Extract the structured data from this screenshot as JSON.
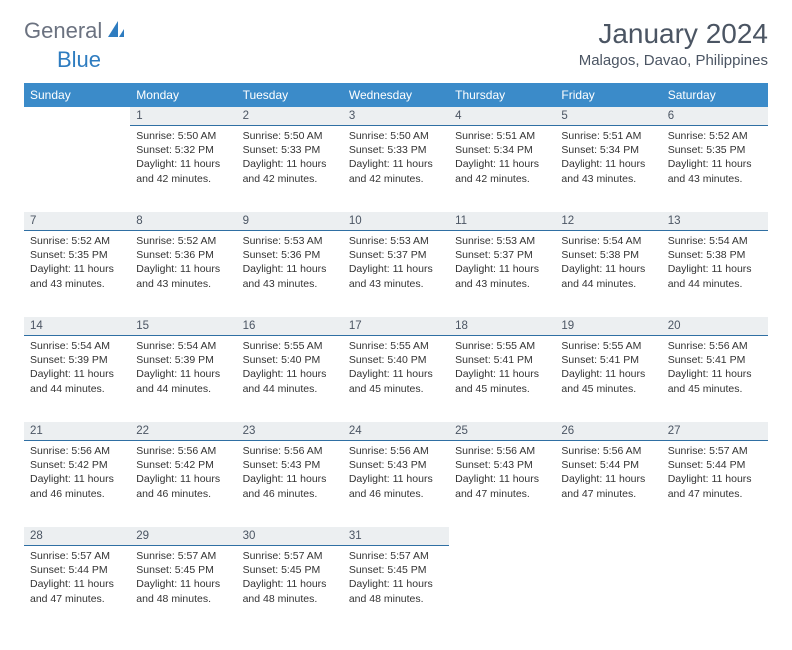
{
  "brand": {
    "part1": "General",
    "part2": "Blue"
  },
  "title": "January 2024",
  "location": "Malagos, Davao, Philippines",
  "header_bg": "#3b8bc9",
  "daynum_bg": "#eceff1",
  "border_color": "#2f6fa3",
  "weekdays": [
    "Sunday",
    "Monday",
    "Tuesday",
    "Wednesday",
    "Thursday",
    "Friday",
    "Saturday"
  ],
  "weeks": [
    [
      null,
      {
        "n": "1",
        "sr": "5:50 AM",
        "ss": "5:32 PM",
        "dl": "11 hours and 42 minutes."
      },
      {
        "n": "2",
        "sr": "5:50 AM",
        "ss": "5:33 PM",
        "dl": "11 hours and 42 minutes."
      },
      {
        "n": "3",
        "sr": "5:50 AM",
        "ss": "5:33 PM",
        "dl": "11 hours and 42 minutes."
      },
      {
        "n": "4",
        "sr": "5:51 AM",
        "ss": "5:34 PM",
        "dl": "11 hours and 42 minutes."
      },
      {
        "n": "5",
        "sr": "5:51 AM",
        "ss": "5:34 PM",
        "dl": "11 hours and 43 minutes."
      },
      {
        "n": "6",
        "sr": "5:52 AM",
        "ss": "5:35 PM",
        "dl": "11 hours and 43 minutes."
      }
    ],
    [
      {
        "n": "7",
        "sr": "5:52 AM",
        "ss": "5:35 PM",
        "dl": "11 hours and 43 minutes."
      },
      {
        "n": "8",
        "sr": "5:52 AM",
        "ss": "5:36 PM",
        "dl": "11 hours and 43 minutes."
      },
      {
        "n": "9",
        "sr": "5:53 AM",
        "ss": "5:36 PM",
        "dl": "11 hours and 43 minutes."
      },
      {
        "n": "10",
        "sr": "5:53 AM",
        "ss": "5:37 PM",
        "dl": "11 hours and 43 minutes."
      },
      {
        "n": "11",
        "sr": "5:53 AM",
        "ss": "5:37 PM",
        "dl": "11 hours and 43 minutes."
      },
      {
        "n": "12",
        "sr": "5:54 AM",
        "ss": "5:38 PM",
        "dl": "11 hours and 44 minutes."
      },
      {
        "n": "13",
        "sr": "5:54 AM",
        "ss": "5:38 PM",
        "dl": "11 hours and 44 minutes."
      }
    ],
    [
      {
        "n": "14",
        "sr": "5:54 AM",
        "ss": "5:39 PM",
        "dl": "11 hours and 44 minutes."
      },
      {
        "n": "15",
        "sr": "5:54 AM",
        "ss": "5:39 PM",
        "dl": "11 hours and 44 minutes."
      },
      {
        "n": "16",
        "sr": "5:55 AM",
        "ss": "5:40 PM",
        "dl": "11 hours and 44 minutes."
      },
      {
        "n": "17",
        "sr": "5:55 AM",
        "ss": "5:40 PM",
        "dl": "11 hours and 45 minutes."
      },
      {
        "n": "18",
        "sr": "5:55 AM",
        "ss": "5:41 PM",
        "dl": "11 hours and 45 minutes."
      },
      {
        "n": "19",
        "sr": "5:55 AM",
        "ss": "5:41 PM",
        "dl": "11 hours and 45 minutes."
      },
      {
        "n": "20",
        "sr": "5:56 AM",
        "ss": "5:41 PM",
        "dl": "11 hours and 45 minutes."
      }
    ],
    [
      {
        "n": "21",
        "sr": "5:56 AM",
        "ss": "5:42 PM",
        "dl": "11 hours and 46 minutes."
      },
      {
        "n": "22",
        "sr": "5:56 AM",
        "ss": "5:42 PM",
        "dl": "11 hours and 46 minutes."
      },
      {
        "n": "23",
        "sr": "5:56 AM",
        "ss": "5:43 PM",
        "dl": "11 hours and 46 minutes."
      },
      {
        "n": "24",
        "sr": "5:56 AM",
        "ss": "5:43 PM",
        "dl": "11 hours and 46 minutes."
      },
      {
        "n": "25",
        "sr": "5:56 AM",
        "ss": "5:43 PM",
        "dl": "11 hours and 47 minutes."
      },
      {
        "n": "26",
        "sr": "5:56 AM",
        "ss": "5:44 PM",
        "dl": "11 hours and 47 minutes."
      },
      {
        "n": "27",
        "sr": "5:57 AM",
        "ss": "5:44 PM",
        "dl": "11 hours and 47 minutes."
      }
    ],
    [
      {
        "n": "28",
        "sr": "5:57 AM",
        "ss": "5:44 PM",
        "dl": "11 hours and 47 minutes."
      },
      {
        "n": "29",
        "sr": "5:57 AM",
        "ss": "5:45 PM",
        "dl": "11 hours and 48 minutes."
      },
      {
        "n": "30",
        "sr": "5:57 AM",
        "ss": "5:45 PM",
        "dl": "11 hours and 48 minutes."
      },
      {
        "n": "31",
        "sr": "5:57 AM",
        "ss": "5:45 PM",
        "dl": "11 hours and 48 minutes."
      },
      null,
      null,
      null
    ]
  ],
  "labels": {
    "sunrise": "Sunrise:",
    "sunset": "Sunset:",
    "daylight": "Daylight:"
  }
}
